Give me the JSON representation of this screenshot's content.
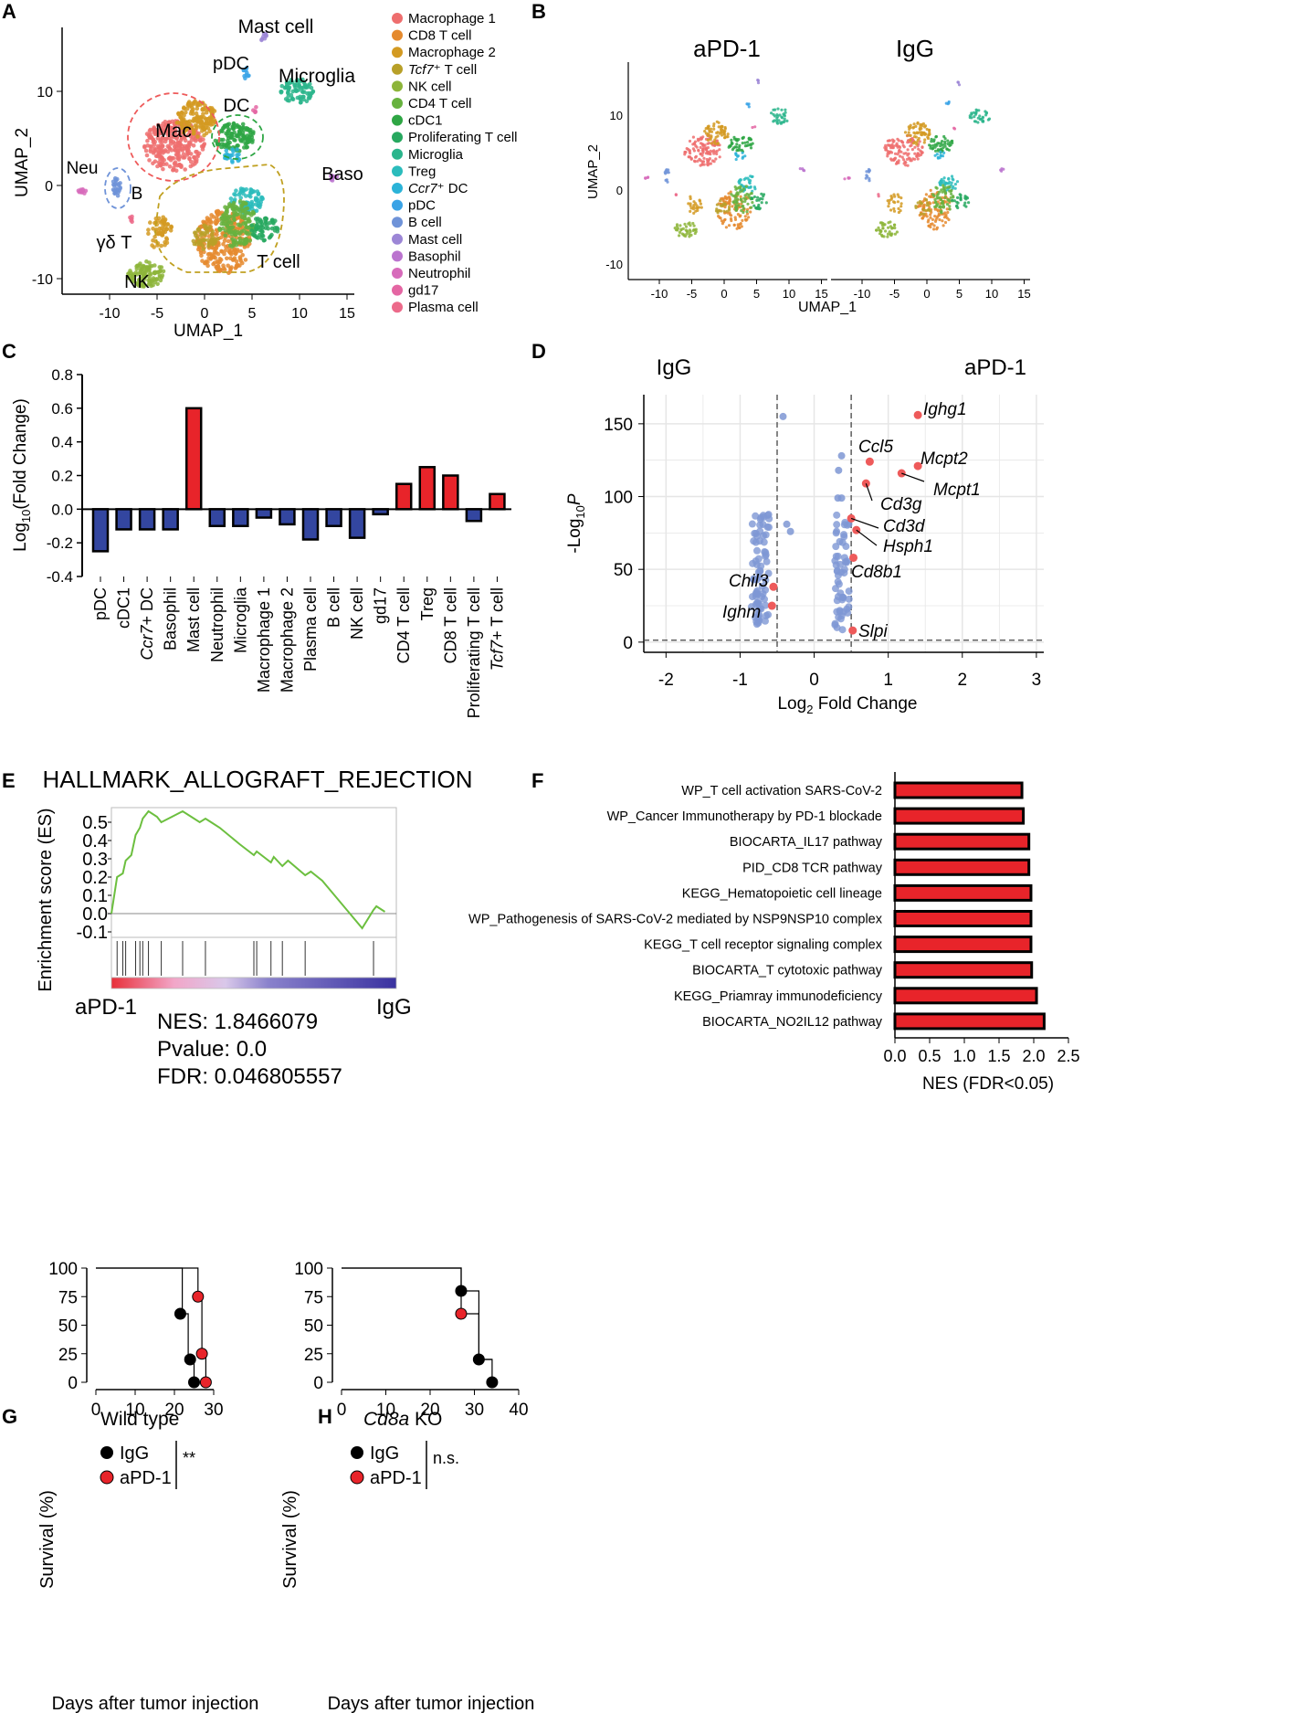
{
  "panels": {
    "A": {
      "letter": "A",
      "xlabel": "UMAP_1",
      "ylabel": "UMAP_2",
      "xticks": [
        "-10",
        "-5",
        "0",
        "5",
        "10",
        "15"
      ],
      "yticks": [
        "10",
        "0",
        "-10"
      ],
      "region_labels": [
        "Mast cell",
        "pDC",
        "Microglia",
        "DC",
        "Mac",
        "Neu",
        "B",
        "Baso",
        "γδ T",
        "NK",
        "T cell"
      ],
      "legend": [
        {
          "label": "Macrophage 1",
          "color": "#ee6e6e"
        },
        {
          "label": "CD8 T cell",
          "color": "#e58a2e"
        },
        {
          "label": "Macrophage 2",
          "color": "#d39a22"
        },
        {
          "label": "Tcf7⁺ T cell",
          "color": "#b8a028",
          "italic_prefix": "Tcf7",
          "suffix": "⁺ T cell"
        },
        {
          "label": "NK cell",
          "color": "#8db53a"
        },
        {
          "label": "CD4 T cell",
          "color": "#67b23e"
        },
        {
          "label": "cDC1",
          "color": "#2ea644"
        },
        {
          "label": "Proliferating T cell",
          "color": "#27a85f"
        },
        {
          "label": "Microglia",
          "color": "#2bb58c"
        },
        {
          "label": "Treg",
          "color": "#2bbcbc"
        },
        {
          "label": "Ccr7⁺ DC",
          "color": "#2bb3d8",
          "italic_prefix": "Ccr7",
          "suffix": "⁺ DC"
        },
        {
          "label": "pDC",
          "color": "#3aa3e6"
        },
        {
          "label": "B cell",
          "color": "#6f93d8"
        },
        {
          "label": "Mast cell",
          "color": "#9c86d6"
        },
        {
          "label": "Basophil",
          "color": "#bb74cf"
        },
        {
          "label": "Neutrophil",
          "color": "#d76bbb"
        },
        {
          "label": "gd17",
          "color": "#e466a3"
        },
        {
          "label": "Plasma cell",
          "color": "#ec6a8a"
        }
      ]
    },
    "B": {
      "letter": "B",
      "titles": [
        "aPD-1",
        "IgG"
      ],
      "xlabel": "UMAP_1",
      "ylabel": "UMAP_2",
      "xticks": [
        "-10",
        "-5",
        "0",
        "5",
        "10",
        "15"
      ],
      "yticks": [
        "10",
        "0",
        "-10"
      ]
    },
    "C": {
      "letter": "C"
    },
    "D": {
      "letter": "D"
    },
    "E": {
      "letter": "E",
      "title": "HALLMARK_ALLOGRAFT_REJECTION",
      "ylabel": "Enrichment score (ES)",
      "yticks": [
        "0.5",
        "0.4",
        "0.3",
        "0.2",
        "0.1",
        "0.0",
        "-0.1"
      ],
      "left_label": "aPD-1",
      "right_label": "IgG",
      "nes": "NES: 1.8466079",
      "pvalue": "Pvalue: 0.0",
      "fdr": "FDR: 0.046805557"
    },
    "F": {
      "letter": "F"
    },
    "G": {
      "letter": "G",
      "title": "Wild type",
      "legend": [
        "IgG",
        "aPD-1"
      ],
      "significance": "**",
      "ylabel": "Survival (%)",
      "xlabel": "Days after tumor injection",
      "yticks": [
        "100",
        "75",
        "50",
        "25",
        "0"
      ],
      "xticks": [
        "0",
        "10",
        "20",
        "30"
      ]
    },
    "H": {
      "letter": "H",
      "title_italic": "Cd8a",
      "title_rest": " KO",
      "legend": [
        "IgG",
        "aPD-1"
      ],
      "significance": "n.s.",
      "ylabel": "Survival (%)",
      "xlabel": "Days after tumor injection",
      "yticks": [
        "100",
        "75",
        "50",
        "25",
        "0"
      ],
      "xticks": [
        "0",
        "10",
        "20",
        "30",
        "40"
      ]
    }
  },
  "chart_data": [
    {
      "panel": "C",
      "type": "bar",
      "ylabel": "Log10(Fold Change)",
      "ylim": [
        -0.4,
        0.8
      ],
      "yticks": [
        0.8,
        0.6,
        0.4,
        0.2,
        0.0,
        -0.2,
        -0.4
      ],
      "categories": [
        "pDC",
        "cDC1",
        "Ccr7+ DC",
        "Basophil",
        "Mast cell",
        "Neutrophil",
        "Microglia",
        "Macrophage 1",
        "Macrophage 2",
        "Plasma cell",
        "B cell",
        "NK cell",
        "gd17",
        "CD4 T cell",
        "Treg",
        "CD8 T cell",
        "Proliferating T cell",
        "Tcf7+ T cell"
      ],
      "values": [
        -0.25,
        -0.12,
        -0.12,
        -0.12,
        0.6,
        -0.1,
        -0.1,
        -0.05,
        -0.09,
        -0.18,
        -0.1,
        -0.17,
        -0.03,
        0.15,
        0.25,
        0.2,
        -0.07,
        0.09
      ],
      "up_color": "#e8242a",
      "down_color": "#3346a0"
    },
    {
      "panel": "D",
      "type": "scatter",
      "title_left": "IgG",
      "title_right": "aPD-1",
      "xlabel": "Log2 Fold Change",
      "ylabel": "-Log10P",
      "xlim": [
        -2.3,
        3.1
      ],
      "ylim": [
        -7,
        170
      ],
      "xticks": [
        -2,
        -1,
        0,
        1,
        2,
        3
      ],
      "yticks": [
        0,
        50,
        100,
        150
      ],
      "thresholds_x": [
        -0.5,
        0.5
      ],
      "threshold_y": 1.3,
      "labeled_genes": [
        {
          "gene": "Ighg1",
          "x": 1.4,
          "y": 156
        },
        {
          "gene": "Ccl5",
          "x": 0.75,
          "y": 124
        },
        {
          "gene": "Mcpt2",
          "x": 1.4,
          "y": 121
        },
        {
          "gene": "Mcpt1",
          "x": 1.18,
          "y": 116
        },
        {
          "gene": "Cd3g",
          "x": 0.7,
          "y": 109
        },
        {
          "gene": "Cd3d",
          "x": 0.5,
          "y": 85
        },
        {
          "gene": "Hsph1",
          "x": 0.57,
          "y": 77
        },
        {
          "gene": "Cd8b1",
          "x": 0.53,
          "y": 58
        },
        {
          "gene": "Slpi",
          "x": 0.52,
          "y": 8
        },
        {
          "gene": "Chil3",
          "x": -0.55,
          "y": 38
        },
        {
          "gene": "Ighm",
          "x": -0.57,
          "y": 25
        }
      ]
    },
    {
      "panel": "F",
      "type": "bar",
      "orientation": "horizontal",
      "xlabel": "NES (FDR<0.05)",
      "xlim": [
        0,
        2.5
      ],
      "xticks": [
        "0.0",
        "0.5",
        "1.0",
        "1.5",
        "2.0",
        "2.5"
      ],
      "categories": [
        "WP_T cell activation SARS-CoV-2",
        "WP_Cancer Immunotherapy by PD-1 blockade",
        "BIOCARTA_IL17 pathway",
        "PID_CD8 TCR pathway",
        "KEGG_Hematopoietic cell lineage",
        "WP_Pathogenesis of SARS-CoV-2 mediated by NSP9NSP10 complex",
        "KEGG_T cell receptor signaling complex",
        "BIOCARTA_T cytotoxic pathway",
        "KEGG_Priamray immunodeficiency",
        "BIOCARTA_NO2IL12 pathway"
      ],
      "values": [
        1.83,
        1.85,
        1.93,
        1.93,
        1.96,
        1.96,
        1.96,
        1.97,
        2.04,
        2.15
      ],
      "color": "#e8242a"
    },
    {
      "panel": "E",
      "type": "line",
      "ylabel": "Enrichment score (ES)",
      "ylim": [
        -0.1,
        0.55
      ],
      "x": [
        0,
        0.02,
        0.04,
        0.05,
        0.07,
        0.085,
        0.1,
        0.11,
        0.13,
        0.16,
        0.175,
        0.2,
        0.25,
        0.28,
        0.31,
        0.33,
        0.35,
        0.38,
        0.45,
        0.5,
        0.51,
        0.56,
        0.57,
        0.6,
        0.62,
        0.68,
        0.7,
        0.74,
        0.88,
        0.92,
        0.93,
        0.96
      ],
      "values": [
        0,
        0.2,
        0.22,
        0.29,
        0.32,
        0.43,
        0.47,
        0.52,
        0.56,
        0.53,
        0.5,
        0.52,
        0.56,
        0.53,
        0.5,
        0.52,
        0.5,
        0.47,
        0.38,
        0.32,
        0.34,
        0.28,
        0.31,
        0.26,
        0.29,
        0.21,
        0.23,
        0.18,
        -0.08,
        0.02,
        0.04,
        0.01
      ],
      "color": "#6cbf3f"
    },
    {
      "panel": "G",
      "type": "survival",
      "xlim": [
        0,
        30
      ],
      "ylim": [
        0,
        100
      ],
      "series": [
        {
          "name": "IgG",
          "color": "#000000",
          "steps": [
            [
              0,
              100
            ],
            [
              22,
              100
            ],
            [
              22,
              60
            ],
            [
              23.5,
              60
            ],
            [
              23.5,
              20
            ],
            [
              25,
              20
            ],
            [
              25,
              0
            ]
          ],
          "points": [
            [
              21.5,
              60
            ],
            [
              24,
              20
            ],
            [
              25,
              0
            ]
          ]
        },
        {
          "name": "aPD-1",
          "color": "#e8242a",
          "steps": [
            [
              0,
              100
            ],
            [
              26,
              100
            ],
            [
              26,
              75
            ],
            [
              27,
              75
            ],
            [
              27,
              25
            ],
            [
              28,
              25
            ],
            [
              28,
              0
            ]
          ],
          "points": [
            [
              26,
              75
            ],
            [
              27,
              25
            ],
            [
              28,
              0
            ]
          ]
        }
      ]
    },
    {
      "panel": "H",
      "type": "survival",
      "xlim": [
        0,
        40
      ],
      "ylim": [
        0,
        100
      ],
      "series": [
        {
          "name": "IgG",
          "color": "#000000",
          "steps": [
            [
              0,
              100
            ],
            [
              27,
              100
            ],
            [
              27,
              80
            ],
            [
              31,
              80
            ],
            [
              31,
              20
            ],
            [
              34,
              20
            ],
            [
              34,
              0
            ]
          ],
          "points": [
            [
              27,
              80
            ],
            [
              31,
              20
            ],
            [
              34,
              0
            ]
          ]
        },
        {
          "name": "aPD-1",
          "color": "#e8242a",
          "steps": [
            [
              0,
              100
            ],
            [
              27,
              100
            ],
            [
              27,
              60
            ],
            [
              31,
              60
            ],
            [
              31,
              20
            ],
            [
              34,
              20
            ]
          ],
          "points": [
            [
              27,
              60
            ]
          ]
        }
      ]
    }
  ]
}
